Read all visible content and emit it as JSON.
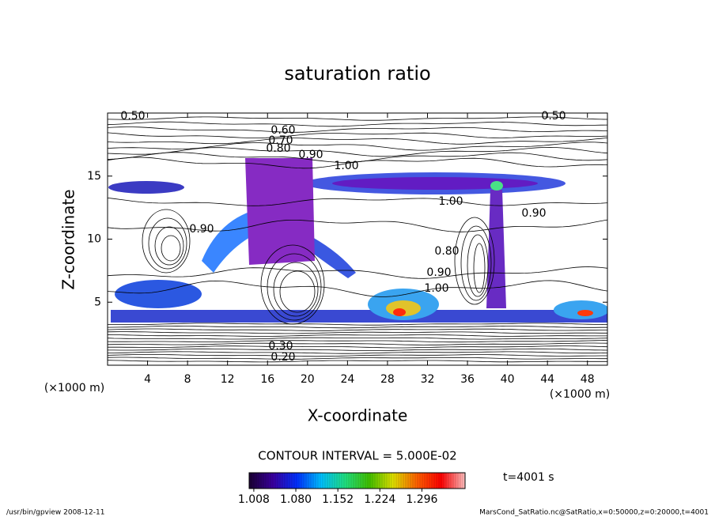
{
  "chart_data": {
    "type": "contour",
    "title": "saturation ratio",
    "x_label": "X-coordinate",
    "y_label": "Z-coordinate",
    "x_units_left": "(×1000 m)",
    "x_units_right": "(×1000 m)",
    "xlim": [
      0,
      50
    ],
    "xticks": [
      4,
      8,
      12,
      16,
      20,
      24,
      28,
      32,
      36,
      40,
      44,
      48
    ],
    "ylim": [
      0,
      20
    ],
    "yticks": [
      5,
      10,
      15
    ],
    "contour_interval": "CONTOUR INTERVAL = 5.000E-02",
    "contour_labels": [
      "0.50",
      "0.50",
      "0.60",
      "0.70",
      "0.80",
      "0.90",
      "1.00",
      "1.00",
      "0.90",
      "0.90",
      "0.80",
      "0.90",
      "1.00",
      "0.30",
      "0.20"
    ],
    "colorbar": {
      "lim": [
        1.0,
        1.37
      ],
      "ticks": [
        {
          "value": 1.008,
          "label": "1.008"
        },
        {
          "value": 1.08,
          "label": "1.080"
        },
        {
          "value": 1.152,
          "label": "1.152"
        },
        {
          "value": 1.224,
          "label": "1.224"
        },
        {
          "value": 1.296,
          "label": "1.296"
        }
      ],
      "colors": [
        "#1a0033",
        "#3a00a0",
        "#0030ff",
        "#00c0ff",
        "#20e080",
        "#40c000",
        "#e0e000",
        "#ff6000",
        "#ff0000",
        "#ffc0c0"
      ]
    },
    "time_label": "t=4001 s",
    "footer_left": "/usr/bin/gpview  2008-12-11",
    "footer_right": "MarsCond_SatRatio.nc@SatRatio,x=0:50000,z=0:20000,t=4001"
  }
}
